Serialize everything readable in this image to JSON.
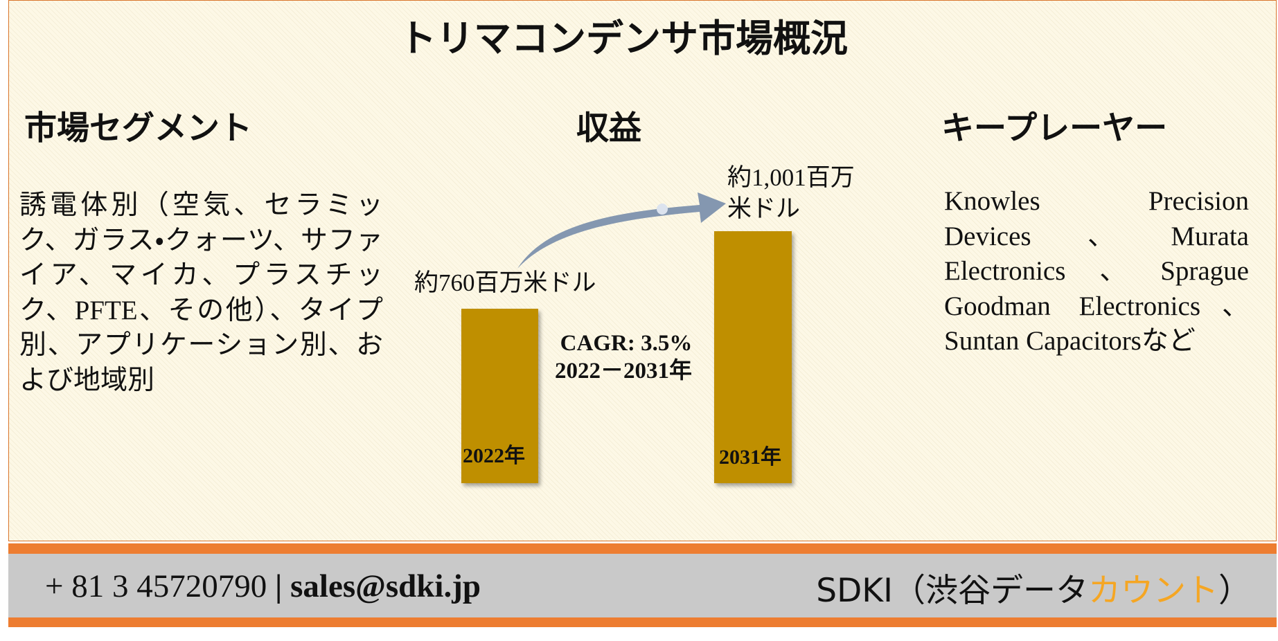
{
  "title": "トリマコンデンサ市場概況",
  "segments": {
    "heading": "市場セグメント",
    "text": "誘電体別（空気、セラミック、ガラス・クォーツ、サファイア、マイカ、プラスチック、PFTE、その他）、タイプ別、アプリケーション別、および地域別"
  },
  "revenue": {
    "heading": "収益",
    "bars": [
      {
        "label": "約760百万米ドル",
        "year": "2022年"
      },
      {
        "label": "約1,001百万米ドル",
        "year": "2031年"
      }
    ],
    "cagr": "CAGR: 3.5%",
    "period": "2022－2031年"
  },
  "players": {
    "heading": "キープレーヤー",
    "text": "Knowles Precision Devices、Murata Electronics、Sprague Goodman Electronics、Suntan Capacitorsなど"
  },
  "footer": {
    "phone": "+ 81 3 45720790",
    "separator": "|",
    "email": "sales@sdki.jp",
    "company": "SDKI（渋谷データ",
    "company_highlight": "カウント",
    "company_end": "）"
  }
}
